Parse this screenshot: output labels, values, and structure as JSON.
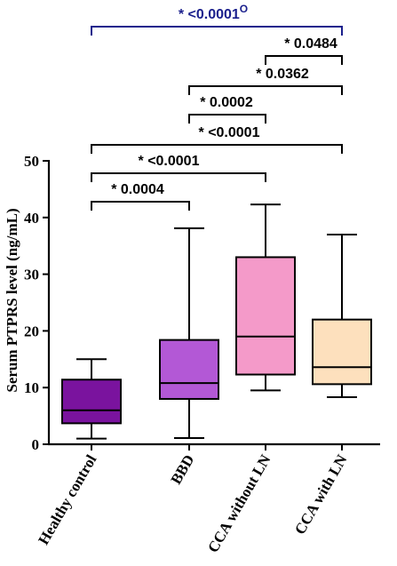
{
  "chart_data": {
    "type": "box",
    "ylabel": "Serum PTPRS level (ng/mL)",
    "xlabel": "",
    "ylim": [
      0,
      50
    ],
    "yticks": [
      "0",
      "10",
      "20",
      "30",
      "40",
      "50"
    ],
    "categories": [
      "Healthy control",
      "BBD",
      "CCA without LN",
      "CCA with LN"
    ],
    "boxes": [
      {
        "name": "Healthy control",
        "min": 1.0,
        "q1": 3.7,
        "median": 6.0,
        "q3": 11.4,
        "max": 15.0,
        "color": "#7a139e"
      },
      {
        "name": "BBD",
        "min": 1.1,
        "q1": 8.0,
        "median": 10.8,
        "q3": 18.4,
        "max": 38.1,
        "color": "#b358d6"
      },
      {
        "name": "CCA without LN",
        "min": 9.5,
        "q1": 12.3,
        "median": 19.0,
        "q3": 33.0,
        "max": 42.3,
        "color": "#f49ac9"
      },
      {
        "name": "CCA with LN",
        "min": 8.3,
        "q1": 10.6,
        "median": 13.6,
        "q3": 22.0,
        "max": 37.0,
        "color": "#fde0bd"
      }
    ],
    "comparisons": [
      {
        "from": 0,
        "to": 1,
        "label": "* 0.0004",
        "color": "#000000"
      },
      {
        "from": 0,
        "to": 2,
        "label": "* <0.0001",
        "color": "#000000"
      },
      {
        "from": 0,
        "to": 3,
        "label": "* <0.0001",
        "color": "#000000"
      },
      {
        "from": 1,
        "to": 2,
        "label": "* 0.0002",
        "color": "#000000"
      },
      {
        "from": 1,
        "to": 3,
        "label": "* 0.0362",
        "color": "#000000"
      },
      {
        "from": 2,
        "to": 3,
        "label": "* 0.0484",
        "color": "#000000"
      },
      {
        "from": 0,
        "to": 3,
        "label": "* <0.0001",
        "superscript": "O",
        "color": "#1a1f8c"
      }
    ]
  }
}
